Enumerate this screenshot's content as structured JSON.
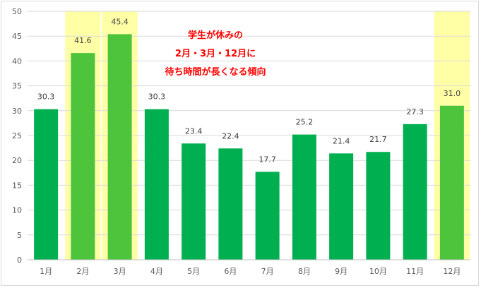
{
  "chart_data": {
    "type": "bar",
    "categories": [
      "1月",
      "2月",
      "3月",
      "4月",
      "5月",
      "6月",
      "7月",
      "8月",
      "9月",
      "10月",
      "11月",
      "12月"
    ],
    "values": [
      30.3,
      41.6,
      45.4,
      30.3,
      23.4,
      22.4,
      17.7,
      25.2,
      21.4,
      21.7,
      27.3,
      31.0
    ],
    "value_labels": [
      "30.3",
      "41.6",
      "45.4",
      "30.3",
      "23.4",
      "22.4",
      "17.7",
      "25.2",
      "21.4",
      "21.7",
      "27.3",
      "31.0"
    ],
    "highlighted": [
      false,
      true,
      true,
      false,
      false,
      false,
      false,
      false,
      false,
      false,
      false,
      true
    ],
    "ylim": [
      0,
      50
    ],
    "yticks": [
      0,
      5,
      10,
      15,
      20,
      25,
      30,
      35,
      40,
      45,
      50
    ],
    "grid": true,
    "title": "",
    "xlabel": "",
    "ylabel": "",
    "annotation": [
      "学生が休みの",
      "2月・3月・12月に",
      "待ち時間が長くなる傾向"
    ]
  },
  "colors": {
    "bar": "#00b050",
    "bar_highlight": "#4ec43c",
    "highlight_band": "#ffffa6",
    "annotation": "#ff0000",
    "grid": "#d9d9d9"
  }
}
